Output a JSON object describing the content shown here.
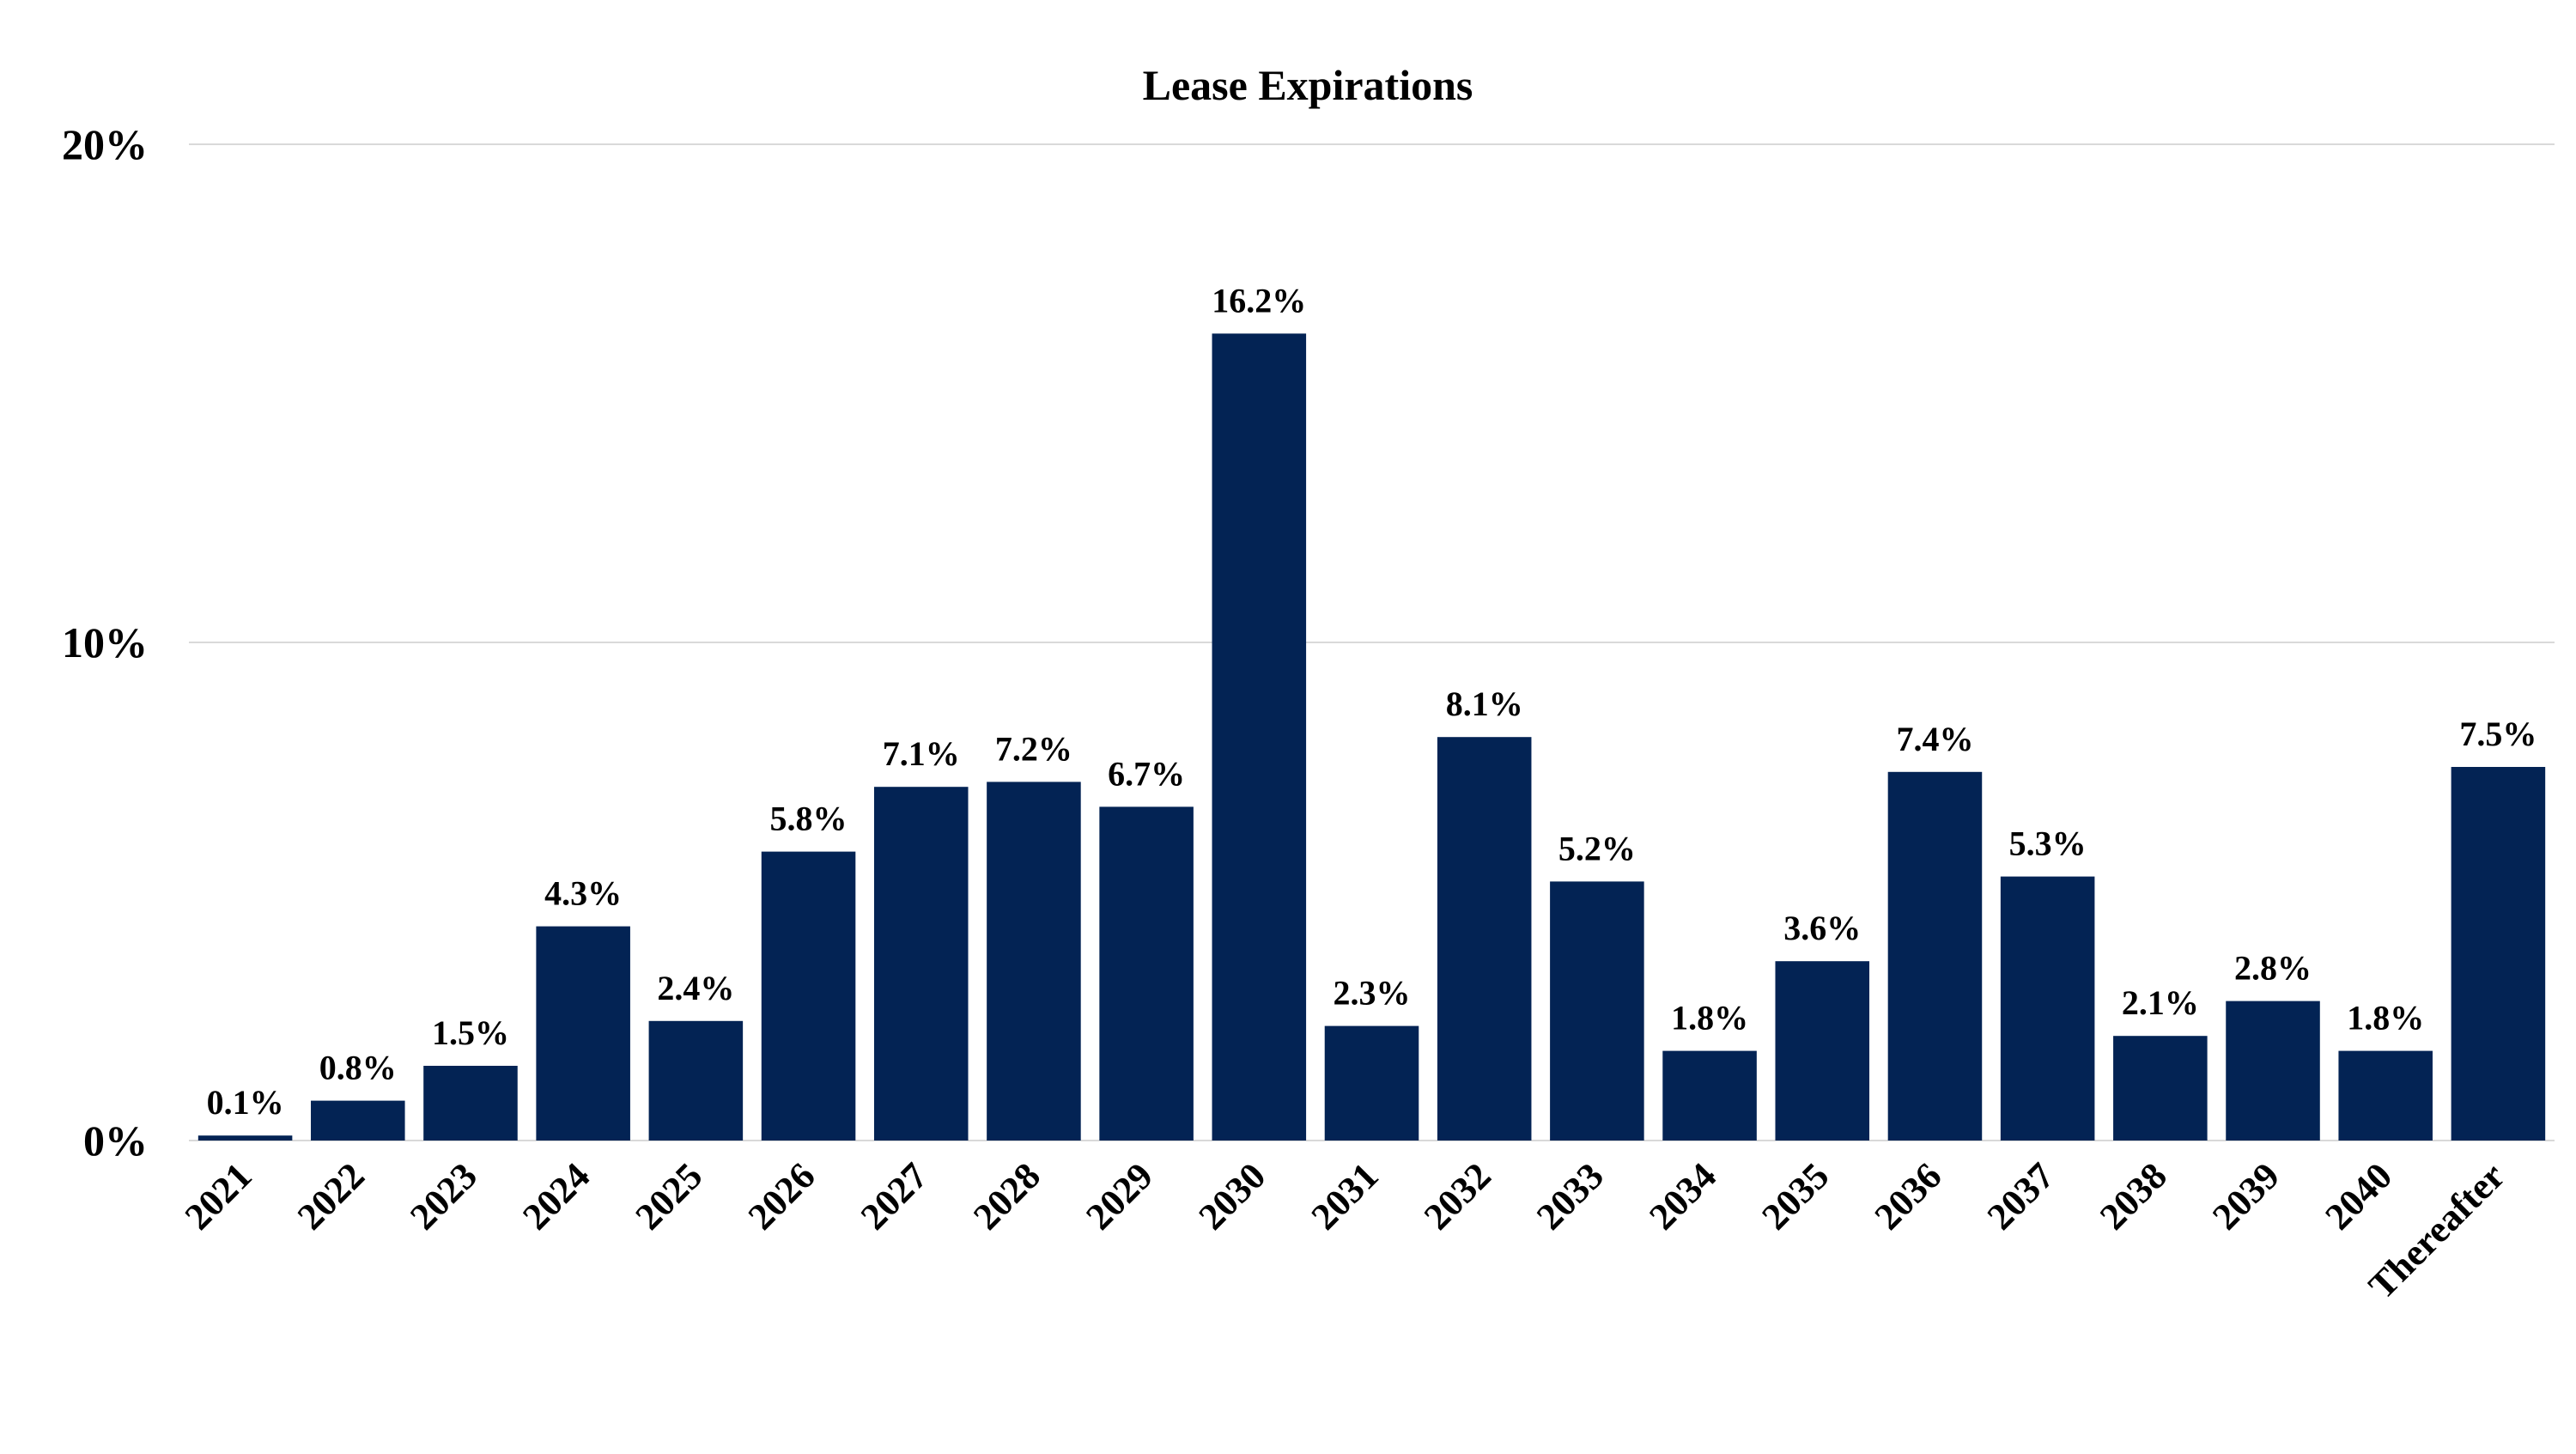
{
  "chart_data": {
    "type": "bar",
    "title": "Lease Expirations",
    "xlabel": "",
    "ylabel": "",
    "categories": [
      "2021",
      "2022",
      "2023",
      "2024",
      "2025",
      "2026",
      "2027",
      "2028",
      "2029",
      "2030",
      "2031",
      "2032",
      "2033",
      "2034",
      "2035",
      "2036",
      "2037",
      "2038",
      "2039",
      "2040",
      "Thereafter"
    ],
    "values": [
      0.1,
      0.8,
      1.5,
      4.3,
      2.4,
      5.8,
      7.1,
      7.2,
      6.7,
      16.2,
      2.3,
      8.1,
      5.2,
      1.8,
      3.6,
      7.4,
      5.3,
      2.1,
      2.8,
      1.8,
      7.5
    ],
    "data_labels": [
      "0.1%",
      "0.8%",
      "1.5%",
      "4.3%",
      "2.4%",
      "5.8%",
      "7.1%",
      "7.2%",
      "6.7%",
      "16.2%",
      "2.3%",
      "8.1%",
      "5.2%",
      "1.8%",
      "3.6%",
      "7.4%",
      "5.3%",
      "2.1%",
      "2.8%",
      "1.8%",
      "7.5%"
    ],
    "ylim": [
      0,
      20
    ],
    "yticks": [
      0,
      10,
      20
    ],
    "ytick_labels": [
      "0%",
      "10%",
      "20%"
    ],
    "grid": true,
    "legend": "none",
    "x_tick_rotation": "45 degrees counter-clockwise",
    "colors": {
      "bar": "#032354",
      "gridline": "#d9d9d9",
      "text": "#000000"
    }
  }
}
